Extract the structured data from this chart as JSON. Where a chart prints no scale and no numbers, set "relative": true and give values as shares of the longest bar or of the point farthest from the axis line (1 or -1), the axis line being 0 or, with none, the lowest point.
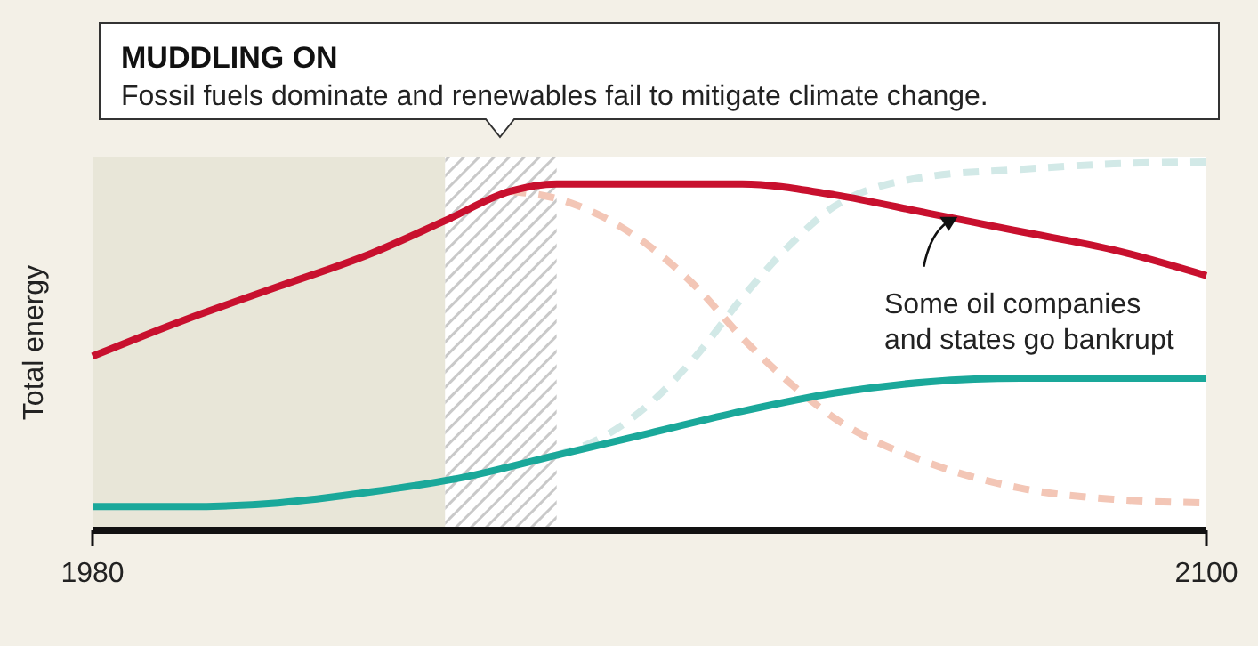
{
  "chart_data": {
    "type": "line",
    "title": "MUDDLING ON",
    "subtitle": "Fossil fuels dominate and renewables fail to mitigate climate change.",
    "ylabel": "Total energy",
    "relative": true,
    "xlim": [
      1980,
      2100
    ],
    "xticks": [
      1980,
      2100
    ],
    "series": [
      {
        "color": "#f3c6b6",
        "line_style": "dashed",
        "x": [
          2025,
          2030,
          2035,
          2040,
          2045,
          2050,
          2055,
          2060,
          2070,
          2080,
          2090,
          2100
        ],
        "values": [
          0.92,
          0.9,
          0.85,
          0.77,
          0.66,
          0.52,
          0.4,
          0.3,
          0.18,
          0.11,
          0.08,
          0.07
        ]
      },
      {
        "color": "#d2e9e7",
        "line_style": "dashed",
        "x": [
          2030,
          2035,
          2040,
          2045,
          2050,
          2055,
          2060,
          2070,
          2080,
          2090,
          2100
        ],
        "values": [
          0.2,
          0.25,
          0.34,
          0.47,
          0.63,
          0.77,
          0.88,
          0.96,
          0.98,
          0.995,
          1
        ]
      },
      {
        "color": "#c8102e",
        "line_style": "solid",
        "x": [
          1980,
          1990,
          2000,
          2010,
          2018,
          2025,
          2030,
          2040,
          2050,
          2060,
          2070,
          2080,
          2090,
          2100
        ],
        "values": [
          0.47,
          0.57,
          0.66,
          0.75,
          0.84,
          0.92,
          0.94,
          0.94,
          0.94,
          0.91,
          0.86,
          0.81,
          0.76,
          0.69
        ]
      },
      {
        "color": "#1aa89a",
        "line_style": "solid",
        "x": [
          1980,
          1990,
          2000,
          2010,
          2020,
          2030,
          2040,
          2050,
          2060,
          2070,
          2080,
          2090,
          2100
        ],
        "values": [
          0.06,
          0.06,
          0.07,
          0.1,
          0.14,
          0.2,
          0.26,
          0.32,
          0.37,
          0.4,
          0.41,
          0.41,
          0.41
        ]
      }
    ],
    "bands": [
      {
        "axis": "x",
        "from": 1980,
        "to": 2018,
        "color": "#e8e6d8"
      },
      {
        "axis": "x",
        "from": 2018,
        "to": 2030,
        "color": "#c9c9c9"
      }
    ],
    "annotations": [
      {
        "text": "Some oil companies and states go bankrupt",
        "x": 2073,
        "y": 0.86
      }
    ]
  }
}
